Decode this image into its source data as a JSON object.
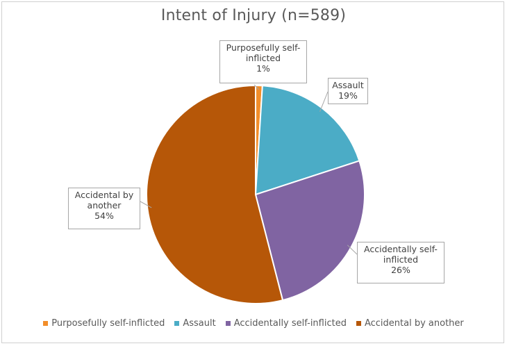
{
  "chart_data": {
    "type": "pie",
    "title": "Intent of Injury (n=589)",
    "slices": [
      {
        "label": "Purposefully self-inflicted",
        "value": 1,
        "label_text": "1%",
        "color": "#F28E2B"
      },
      {
        "label": "Assault",
        "value": 19,
        "label_text": "19%",
        "color": "#4BACC6"
      },
      {
        "label": "Accidentally self-inflicted",
        "value": 26,
        "label_text": "26%",
        "color": "#8064A2"
      },
      {
        "label": "Accidental by another",
        "value": 54,
        "label_text": "54%",
        "color": "#B65708"
      }
    ],
    "legend_position": "bottom",
    "data_labels": "callouts with category name and percentage"
  }
}
